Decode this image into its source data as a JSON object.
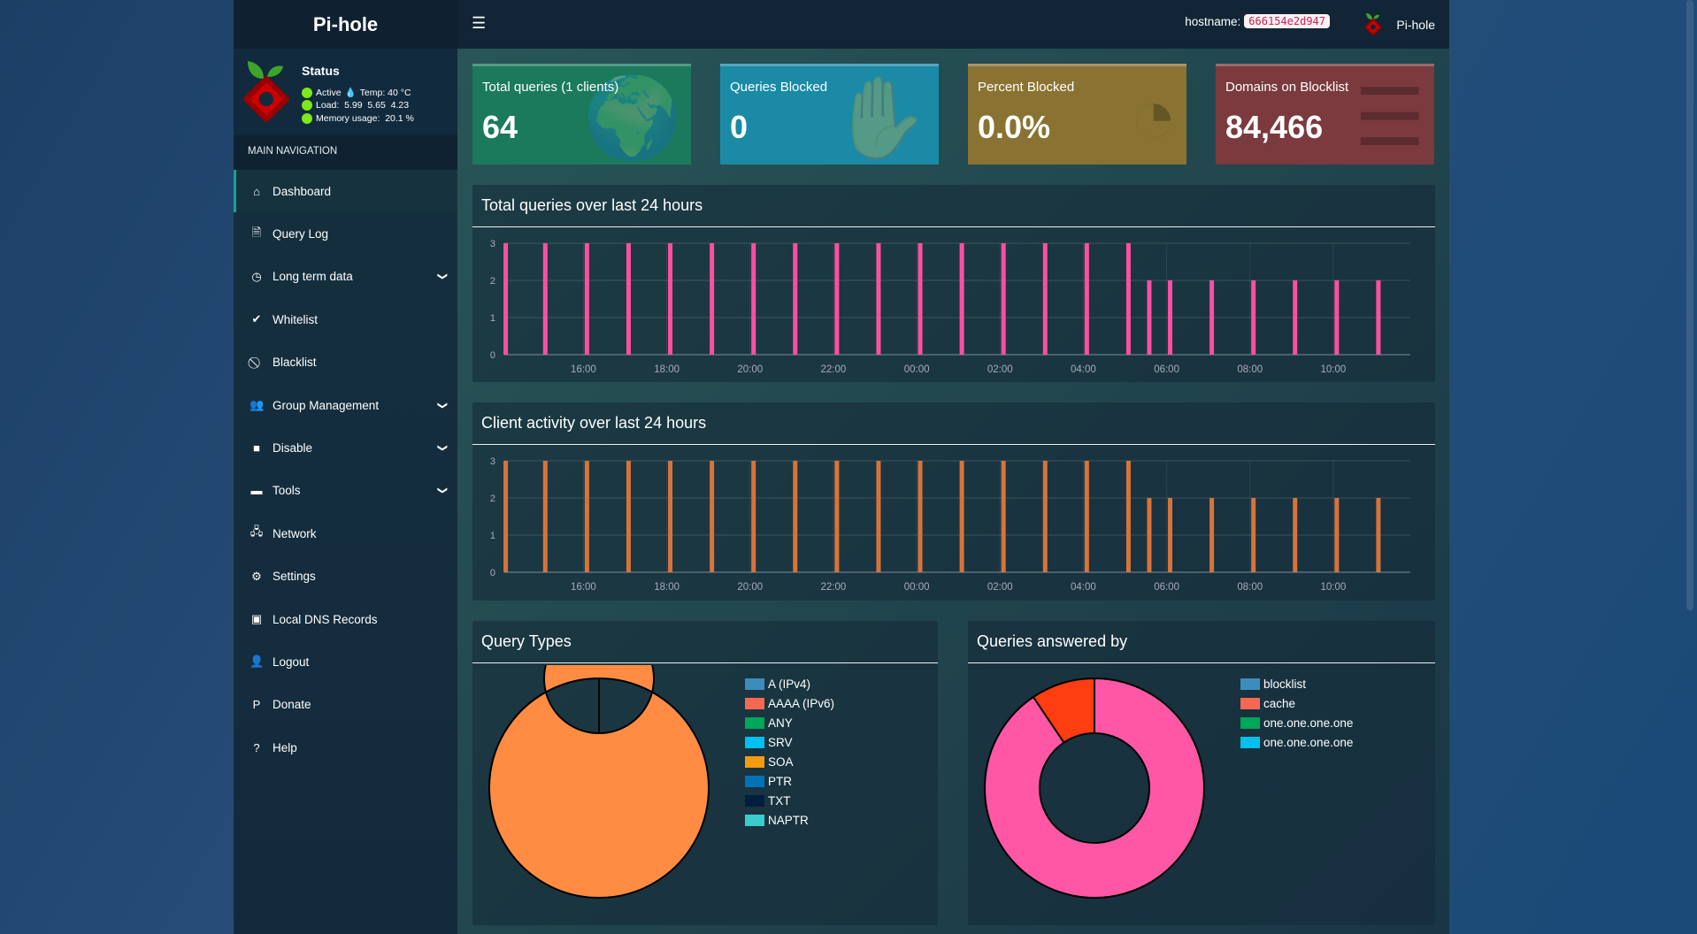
{
  "app": {
    "title": "Pi-hole"
  },
  "status": {
    "title": "Status",
    "active": "Active",
    "temp": "Temp: 40 °C",
    "load": "Load:  5.99  5.65  4.23",
    "memory": "Memory usage:  20.1 %",
    "indicator_color": "#7fe81a"
  },
  "sidebar": {
    "header": "MAIN NAVIGATION",
    "items": [
      {
        "label": "Dashboard",
        "icon": "home-icon",
        "active": true
      },
      {
        "label": "Query Log",
        "icon": "file-icon"
      },
      {
        "label": "Long term data",
        "icon": "clock-icon",
        "expandable": true
      },
      {
        "label": "Whitelist",
        "icon": "check-circle-icon"
      },
      {
        "label": "Blacklist",
        "icon": "ban-icon"
      },
      {
        "label": "Group Management",
        "icon": "users-icon",
        "expandable": true
      },
      {
        "label": "Disable",
        "icon": "stop-icon",
        "expandable": true
      },
      {
        "label": "Tools",
        "icon": "folder-icon",
        "expandable": true
      },
      {
        "label": "Network",
        "icon": "network-icon"
      },
      {
        "label": "Settings",
        "icon": "gears-icon"
      },
      {
        "label": "Local DNS Records",
        "icon": "address-book-icon"
      },
      {
        "label": "Logout",
        "icon": "user-times-icon"
      },
      {
        "label": "Donate",
        "icon": "paypal-icon"
      },
      {
        "label": "Help",
        "icon": "question-circle-icon"
      }
    ]
  },
  "header": {
    "hostname_label": "hostname:",
    "hostname": "666154e2d947",
    "user": "Pi-hole"
  },
  "stats": [
    {
      "label": "Total queries (1 clients)",
      "value": "64",
      "color": "#1b7a5c",
      "icon": "globe-icon"
    },
    {
      "label": "Queries Blocked",
      "value": "0",
      "color": "#1a8aa6",
      "icon": "hand-icon"
    },
    {
      "label": "Percent Blocked",
      "value": "0.0%",
      "color": "#8a7332",
      "icon": "pie-chart-icon"
    },
    {
      "label": "Domains on Blocklist",
      "value": "84,466",
      "color": "#7a3a3e",
      "icon": "list-icon"
    }
  ],
  "chart_data": [
    {
      "type": "bar",
      "title": "Total queries over last 24 hours",
      "color": "#ff4fa3",
      "ylim": [
        0,
        3
      ],
      "yticks": [
        "0",
        "1",
        "2",
        "3"
      ],
      "xticks": [
        "16:00",
        "18:00",
        "20:00",
        "22:00",
        "00:00",
        "02:00",
        "04:00",
        "06:00",
        "08:00",
        "10:00"
      ],
      "x": [
        "14:08",
        "15:05",
        "16:05",
        "17:05",
        "18:05",
        "19:05",
        "20:05",
        "21:05",
        "22:05",
        "23:05",
        "00:05",
        "01:05",
        "02:05",
        "03:05",
        "04:05",
        "05:05",
        "05:35",
        "06:05",
        "07:05",
        "08:05",
        "09:05",
        "10:05",
        "11:05"
      ],
      "values": [
        3,
        3,
        3,
        3,
        3,
        3,
        3,
        3,
        3,
        3,
        3,
        3,
        3,
        3,
        3,
        3,
        2,
        2,
        2,
        2,
        2,
        2,
        2
      ]
    },
    {
      "type": "bar",
      "title": "Client activity over last 24 hours",
      "color": "#d8733a",
      "ylim": [
        0,
        3
      ],
      "yticks": [
        "0",
        "1",
        "2",
        "3"
      ],
      "xticks": [
        "16:00",
        "18:00",
        "20:00",
        "22:00",
        "00:00",
        "02:00",
        "04:00",
        "06:00",
        "08:00",
        "10:00"
      ],
      "x": [
        "14:08",
        "15:05",
        "16:05",
        "17:05",
        "18:05",
        "19:05",
        "20:05",
        "21:05",
        "22:05",
        "23:05",
        "00:05",
        "01:05",
        "02:05",
        "03:05",
        "04:05",
        "05:05",
        "05:35",
        "06:05",
        "07:05",
        "08:05",
        "09:05",
        "10:05",
        "11:05"
      ],
      "values": [
        3,
        3,
        3,
        3,
        3,
        3,
        3,
        3,
        3,
        3,
        3,
        3,
        3,
        3,
        3,
        3,
        2,
        2,
        2,
        2,
        2,
        2,
        2
      ]
    },
    {
      "type": "pie",
      "title": "Query Types",
      "legend": [
        {
          "label": "A (IPv4)",
          "color": "#3c8dbc"
        },
        {
          "label": "AAAA (IPv6)",
          "color": "#f56954"
        },
        {
          "label": "ANY",
          "color": "#00a65a"
        },
        {
          "label": "SRV",
          "color": "#00c0ef"
        },
        {
          "label": "SOA",
          "color": "#f39c12"
        },
        {
          "label": "PTR",
          "color": "#0073b7"
        },
        {
          "label": "TXT",
          "color": "#001f3f"
        },
        {
          "label": "NAPTR",
          "color": "#39cccc"
        }
      ],
      "slices": [
        {
          "label": "A (IPv4)",
          "value": 100,
          "color": "#ff8c42"
        }
      ]
    },
    {
      "type": "pie",
      "title": "Queries answered by",
      "legend": [
        {
          "label": "blocklist",
          "color": "#3c8dbc"
        },
        {
          "label": "cache",
          "color": "#f56954"
        },
        {
          "label": "one.one.one.one",
          "color": "#00a65a"
        },
        {
          "label": "one.one.one.one",
          "color": "#00c0ef"
        }
      ],
      "slices": [
        {
          "label": "one.one.one.one",
          "value": 90.6,
          "color": "#ff57a6"
        },
        {
          "label": "cache",
          "value": 9.4,
          "color": "#ff3d10"
        }
      ]
    }
  ]
}
